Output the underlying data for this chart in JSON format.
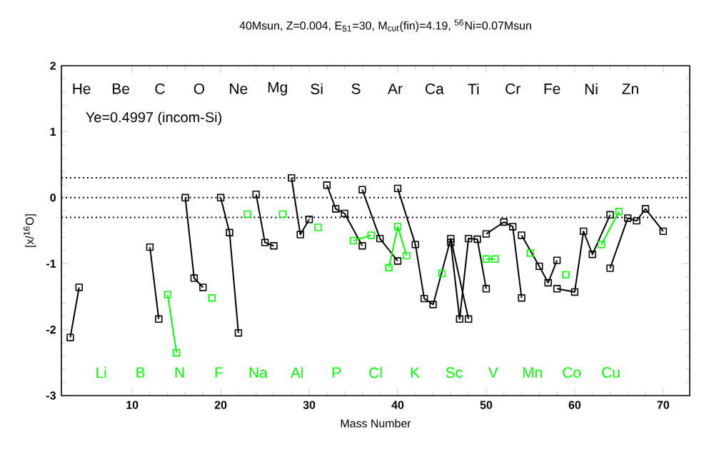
{
  "chart_data": {
    "type": "line",
    "title": "40Msun, Z=0.004, E$_{51}$=30, M$_{cut}$(fin)=4.19, $^{56}$Ni=0.07Msun",
    "xlabel": "Mass Number",
    "ylabel": "[x/$^{16}$O]",
    "xlim": [
      2,
      73
    ],
    "ylim": [
      -3,
      2
    ],
    "xticks": [
      10,
      20,
      30,
      40,
      50,
      60,
      70
    ],
    "yticks": [
      -3,
      -2,
      -1,
      0,
      1,
      2
    ],
    "marker": "square",
    "line_style": "solid",
    "series": [
      {
        "color": "#000000",
        "x": [
          3,
          4
        ],
        "values": [
          -2.12,
          -1.36
        ]
      },
      {
        "color": "#000000",
        "x": [
          12,
          13
        ],
        "values": [
          -0.75,
          -1.84
        ]
      },
      {
        "color": "#00ff00",
        "x": [
          14,
          15
        ],
        "values": [
          -1.47,
          -2.35
        ]
      },
      {
        "color": "#000000",
        "x": [
          16,
          17,
          18
        ],
        "values": [
          0.0,
          -1.22,
          -1.36
        ]
      },
      {
        "color": "#00ff00",
        "x": [
          19
        ],
        "values": [
          -1.52
        ]
      },
      {
        "color": "#000000",
        "x": [
          20,
          21,
          22
        ],
        "values": [
          0.0,
          -0.53,
          -2.05
        ]
      },
      {
        "color": "#00ff00",
        "x": [
          23
        ],
        "values": [
          -0.25
        ]
      },
      {
        "color": "#000000",
        "x": [
          24,
          25,
          26
        ],
        "values": [
          0.05,
          -0.68,
          -0.73
        ]
      },
      {
        "color": "#00ff00",
        "x": [
          27
        ],
        "values": [
          -0.25
        ]
      },
      {
        "color": "#000000",
        "x": [
          28,
          29,
          30
        ],
        "values": [
          0.3,
          -0.56,
          -0.33
        ]
      },
      {
        "color": "#00ff00",
        "x": [
          31
        ],
        "values": [
          -0.45
        ]
      },
      {
        "color": "#000000",
        "x": [
          32,
          33,
          34,
          36
        ],
        "values": [
          0.19,
          -0.17,
          -0.24,
          -0.73
        ]
      },
      {
        "color": "#00ff00",
        "x": [
          35,
          37
        ],
        "values": [
          -0.65,
          -0.57
        ]
      },
      {
        "color": "#000000",
        "x": [
          36,
          38,
          40
        ],
        "values": [
          0.12,
          -0.62,
          -0.96
        ]
      },
      {
        "color": "#00ff00",
        "x": [
          39,
          40,
          41
        ],
        "values": [
          -1.06,
          -0.44,
          -0.88
        ]
      },
      {
        "color": "#000000",
        "x": [
          40,
          42,
          43,
          44,
          46,
          48
        ],
        "values": [
          0.14,
          -0.71,
          -1.53,
          -1.62,
          -0.62,
          -1.84
        ]
      },
      {
        "color": "#00ff00",
        "x": [
          45
        ],
        "values": [
          -1.15
        ]
      },
      {
        "color": "#000000",
        "x": [
          46,
          47,
          48,
          49,
          50
        ],
        "values": [
          -0.68,
          -1.84,
          -0.62,
          -0.63,
          -1.38
        ]
      },
      {
        "color": "#00ff00",
        "x": [
          50,
          51
        ],
        "values": [
          -0.93,
          -0.93
        ]
      },
      {
        "color": "#000000",
        "x": [
          50,
          52,
          53,
          54
        ],
        "values": [
          -0.55,
          -0.37,
          -0.44,
          -1.52
        ]
      },
      {
        "color": "#00ff00",
        "x": [
          55
        ],
        "values": [
          -0.84
        ]
      },
      {
        "color": "#000000",
        "x": [
          54,
          56,
          57,
          58
        ],
        "values": [
          -0.57,
          -1.04,
          -1.29,
          -0.95
        ]
      },
      {
        "color": "#00ff00",
        "x": [
          59
        ],
        "values": [
          -1.17
        ]
      },
      {
        "color": "#000000",
        "x": [
          58,
          60,
          61,
          62,
          64
        ],
        "values": [
          -1.38,
          -1.43,
          -0.51,
          -0.86,
          -0.26
        ]
      },
      {
        "color": "#00ff00",
        "x": [
          63,
          65
        ],
        "values": [
          -0.71,
          -0.21
        ]
      },
      {
        "color": "#000000",
        "x": [
          64,
          66,
          67,
          68,
          70
        ],
        "values": [
          -1.07,
          -0.31,
          -0.35,
          -0.17,
          -0.51
        ]
      }
    ],
    "ref_lines": [
      {
        "axis": "y",
        "value": 0.3,
        "line_style": "dotted",
        "color": "#000000"
      },
      {
        "axis": "y",
        "value": 0,
        "line_style": "dotted",
        "color": "#000000"
      },
      {
        "axis": "y",
        "value": -0.3,
        "line_style": "dotted",
        "color": "#000000"
      }
    ],
    "annotations": [
      "Ye=0.4997 (incom-Si)",
      "He",
      "Li",
      "Be",
      "B",
      "C",
      "N",
      "O",
      "F",
      "Ne",
      "Na",
      "Mg",
      "Al",
      "Si",
      "P",
      "S",
      "Cl",
      "Ar",
      "K",
      "Ca",
      "Sc",
      "Ti",
      "V",
      "Cr",
      "Mn",
      "Fe",
      "Co",
      "Ni",
      "Cu",
      "Zn"
    ]
  }
}
